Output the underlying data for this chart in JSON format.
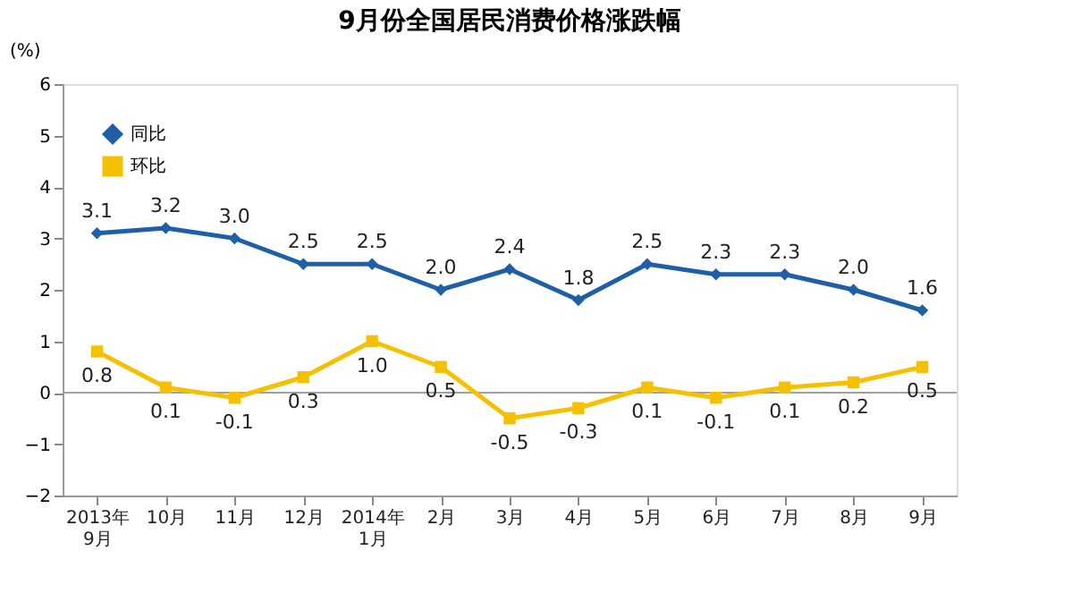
{
  "chart_data": {
    "type": "line",
    "title": "9月份全国居民消费价格涨跌幅",
    "ylabel": "(%)",
    "categories": [
      "2013年\n9月",
      "10月",
      "11月",
      "12月",
      "2014年\n1月",
      "2月",
      "3月",
      "4月",
      "5月",
      "6月",
      "7月",
      "8月",
      "9月"
    ],
    "series": [
      {
        "name": "同比",
        "color": "#1f5fa8",
        "marker": "diamond",
        "values": [
          3.1,
          3.2,
          3.0,
          2.5,
          2.5,
          2.0,
          2.4,
          1.8,
          2.5,
          2.3,
          2.3,
          2.0,
          1.6
        ],
        "value_labels": [
          "3.1",
          "3.2",
          "3.0",
          "2.5",
          "2.5",
          "2.0",
          "2.4",
          "1.8",
          "2.5",
          "2.3",
          "2.3",
          "2.0",
          "1.6"
        ]
      },
      {
        "name": "环比",
        "color": "#f5c000",
        "marker": "square",
        "values": [
          0.8,
          0.1,
          -0.1,
          0.3,
          1.0,
          0.5,
          -0.5,
          -0.3,
          0.1,
          -0.1,
          0.1,
          0.2,
          0.5
        ],
        "value_labels": [
          "0.8",
          "0.1",
          "-0.1",
          "0.3",
          "1.0",
          "0.5",
          "-0.5",
          "-0.3",
          "0.1",
          "-0.1",
          "0.1",
          "0.2",
          "0.5"
        ]
      }
    ],
    "ylim": [
      -2,
      6
    ],
    "yticks": [
      -2,
      -1,
      0,
      1,
      2,
      3,
      4,
      5,
      6
    ],
    "ref_lines": [
      {
        "axis": "y",
        "value": 0,
        "color": "#a0a0a0"
      }
    ],
    "legend": "top left",
    "grid": false,
    "line_style": "solid"
  }
}
